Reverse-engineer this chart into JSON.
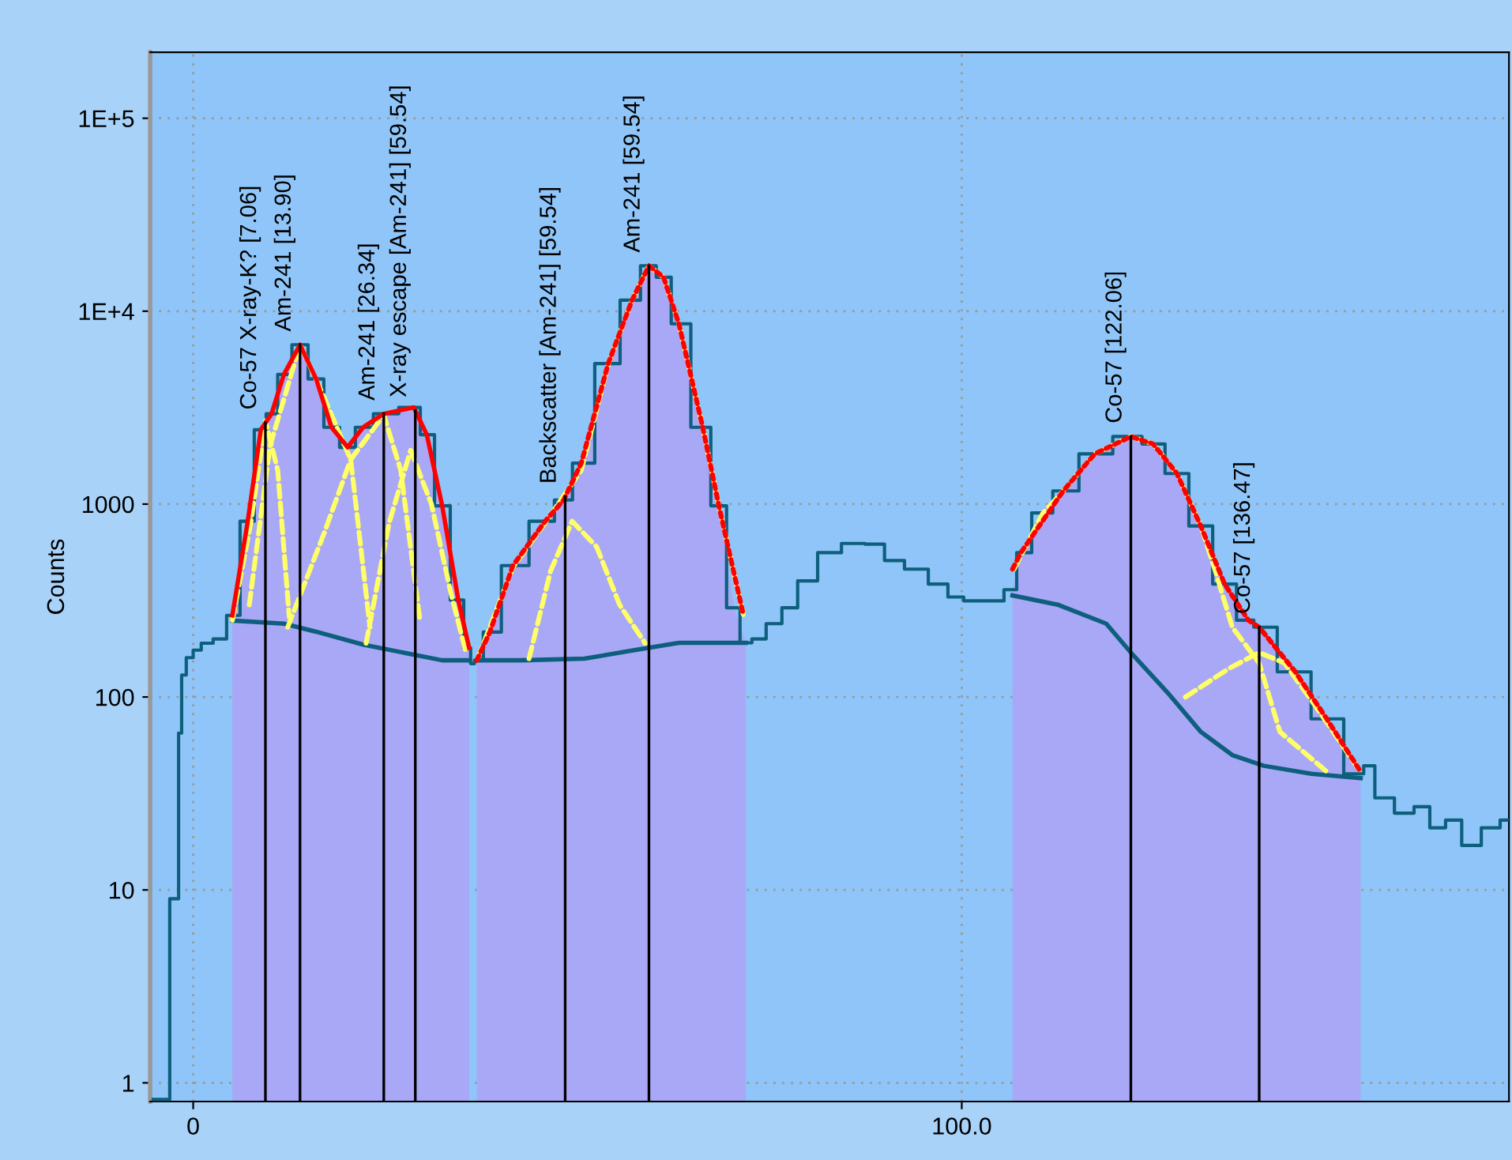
{
  "chart_data": {
    "type": "line",
    "ylabel": "Counts",
    "log": "y",
    "grid": true,
    "xlim": [
      -5.6,
      171.2
    ],
    "xticks": [
      0,
      {
        "value": 100,
        "label": "100.0"
      }
    ],
    "ylim": [
      0.8,
      220000
    ],
    "yticks": [
      1,
      10,
      100,
      1000,
      {
        "value": 10000,
        "label": "1E+4"
      },
      {
        "value": 100000,
        "label": "1E+5"
      }
    ],
    "ref_lines": [
      {
        "axis": "x",
        "value": 9.4,
        "label": "Co-57 X-ray-K? [7.06]",
        "color": "#000000"
      },
      {
        "axis": "x",
        "value": 13.9,
        "label": "Am-241 [13.90]",
        "color": "#000000"
      },
      {
        "axis": "x",
        "value": 24.8,
        "label": "Am-241 [26.34]",
        "color": "#000000"
      },
      {
        "axis": "x",
        "value": 28.9,
        "label": "X-ray escape [Am-241] [59.54]",
        "color": "#000000"
      },
      {
        "axis": "x",
        "value": 48.4,
        "label": "Backscatter [Am-241] [59.54]",
        "color": "#000000"
      },
      {
        "axis": "x",
        "value": 59.3,
        "label": "Am-241 [59.54]",
        "color": "#000000"
      },
      {
        "axis": "x",
        "value": 122.0,
        "label": "Co-57 [122.06]",
        "color": "#000000"
      },
      {
        "axis": "x",
        "value": 138.7,
        "label": "Co-57 [136.47]",
        "color": "#000000"
      }
    ],
    "series": [
      {
        "type": "area",
        "color": "#a9a8f7",
        "x": [
          5.1,
          7.1,
          8.8,
          10.2,
          11.8,
          13.9,
          16.0,
          18.0,
          20.1,
          22.1,
          24.8,
          28.7,
          30.4,
          32.4,
          34.5,
          35.9
        ],
        "values": [
          265,
          815,
          2430,
          2940,
          4700,
          6700,
          4450,
          2500,
          1970,
          2500,
          2940,
          3170,
          2290,
          980,
          318,
          180
        ]
      },
      {
        "type": "area",
        "color": "#a9a8f7",
        "x": [
          36.9,
          38.6,
          41.6,
          45.8,
          48.2,
          50.5,
          54.0,
          57.1,
          59.3,
          61.2,
          63.2,
          66.3,
          68.4,
          70.4,
          71.9
        ],
        "values": [
          155,
          217,
          480,
          815,
          1050,
          1630,
          5350,
          11400,
          17200,
          15000,
          8600,
          2500,
          980,
          290,
          191
        ]
      },
      {
        "type": "area",
        "color": "#a9a8f7",
        "x": [
          106.6,
          107.7,
          110.5,
          113.2,
          117.3,
          122.0,
          124.9,
          128.0,
          131.1,
          134.2,
          137.3,
          138.7,
          143.4,
          147.5,
          151.9
        ],
        "values": [
          360,
          560,
          900,
          1170,
          1820,
          2240,
          2050,
          1440,
          770,
          385,
          250,
          230,
          135,
          77,
          40
        ]
      },
      {
        "type": "step",
        "color": "#0e5f7e",
        "x": [
          -5.2,
          -3.2,
          -2.9,
          -2.1,
          -1.7,
          -1.3,
          -0.5,
          0.5,
          1.6,
          3.6,
          5.1,
          7.1,
          8.8,
          10.2,
          11.8,
          13.9,
          16.0,
          18.0,
          20.1,
          22.1,
          24.8,
          28.7,
          30.4,
          32.4,
          34.5,
          35.9,
          36.3,
          36.9,
          38.6,
          41.6,
          45.8,
          48.2,
          50.5,
          54.0,
          57.1,
          59.3,
          61.2,
          63.2,
          66.3,
          68.4,
          70.4,
          71.9,
          73.5,
          75.6,
          77.6,
          79.7,
          82.8,
          85.9,
          88.9,
          91.0,
          94.1,
          97.2,
          99.2,
          101.3,
          104.4,
          106.6,
          107.7,
          110.5,
          113.2,
          117.3,
          122.0,
          124.9,
          128.0,
          131.1,
          134.2,
          137.3,
          138.7,
          143.4,
          147.5,
          151.9,
          152.7,
          154.8,
          157.8,
          159.9,
          161.9,
          164.0,
          166.1,
          169.1,
          171.0
        ],
        "values": [
          0.82,
          0.82,
          9,
          9,
          65,
          130,
          160,
          175,
          190,
          200,
          265,
          815,
          2430,
          2940,
          4700,
          6700,
          4450,
          2500,
          1970,
          2500,
          2940,
          3170,
          2290,
          980,
          318,
          180,
          149,
          155,
          217,
          480,
          815,
          1050,
          1630,
          5350,
          11400,
          17200,
          15000,
          8600,
          2500,
          980,
          290,
          191,
          200,
          240,
          290,
          400,
          560,
          625,
          620,
          510,
          460,
          385,
          330,
          315,
          315,
          360,
          560,
          900,
          1170,
          1820,
          2240,
          2050,
          1440,
          770,
          385,
          250,
          230,
          135,
          77,
          40,
          44,
          30,
          25,
          27,
          21,
          23,
          17,
          21,
          23
        ]
      },
      {
        "color": "#0e5f7e",
        "x": [
          5.1,
          11.8,
          16.0,
          22.1,
          28.3,
          32.4,
          35.9
        ],
        "values": [
          249,
          240,
          218,
          187,
          167,
          155,
          155
        ]
      },
      {
        "color": "#0e5f7e",
        "x": [
          36.9,
          42.7,
          50.9,
          57.1,
          63.2,
          71.9
        ],
        "values": [
          155,
          155,
          158,
          174,
          191,
          191
        ]
      },
      {
        "color": "#0e5f7e",
        "x": [
          106.6,
          112.6,
          118.8,
          122.0,
          127.0,
          131.1,
          135.2,
          139.3,
          145.5,
          151.9
        ],
        "values": [
          336,
          300,
          240,
          170,
          103,
          66,
          50,
          44,
          40,
          38
        ]
      },
      {
        "color": "#ffff66",
        "line_style": "dashed",
        "x": [
          5.1,
          7.5,
          9.4,
          11.0,
          12.5
        ],
        "values": [
          250,
          800,
          2700,
          1500,
          260
        ]
      },
      {
        "color": "#ffff66",
        "line_style": "dashed",
        "x": [
          7.3,
          10.0,
          13.9,
          16.5,
          20.5,
          23.0
        ],
        "values": [
          300,
          2000,
          6700,
          4000,
          1700,
          230
        ]
      },
      {
        "color": "#ffff66",
        "line_style": "dashed",
        "x": [
          12.3,
          17.0,
          20.5,
          24.8,
          27.0,
          29.5
        ],
        "values": [
          230,
          700,
          1700,
          2900,
          1500,
          250
        ]
      },
      {
        "color": "#ffff66",
        "line_style": "dashed",
        "x": [
          22.5,
          25.5,
          28.3,
          31.0,
          33.5,
          35.5
        ],
        "values": [
          190,
          800,
          1900,
          1000,
          350,
          170
        ]
      },
      {
        "color": "#ffff66",
        "line_style": "dashed",
        "x": [
          43.7,
          46.5,
          49.3,
          52.5,
          55.5,
          58.8
        ],
        "values": [
          158,
          450,
          815,
          600,
          300,
          190
        ]
      },
      {
        "color": "#ffff66",
        "line_style": "dashed",
        "x": [
          37.0,
          41.6,
          45.8,
          50.5,
          54.0,
          57.1,
          59.3,
          61.2,
          63.2,
          66.3,
          68.4,
          71.6
        ],
        "values": [
          158,
          470,
          800,
          1500,
          5300,
          11400,
          17200,
          15000,
          8600,
          2500,
          980,
          265
        ]
      },
      {
        "color": "#ffff66",
        "line_style": "dashed",
        "x": [
          106.8,
          110.5,
          113.2,
          117.3,
          122.0,
          124.9,
          128.0,
          131.1,
          133.0,
          135.2,
          138.7,
          141.4,
          147.5
        ],
        "values": [
          460,
          890,
          1170,
          1820,
          2240,
          2050,
          1440,
          770,
          450,
          230,
          150,
          66,
          41
        ]
      },
      {
        "color": "#ffff66",
        "line_style": "dashed",
        "x": [
          129.1,
          134.7,
          138.7,
          142.0,
          146.0,
          151.7
        ],
        "values": [
          100,
          140,
          170,
          150,
          90,
          42
        ]
      },
      {
        "color": "#ff0000",
        "x": [
          5.1,
          7.1,
          8.8,
          10.2,
          11.8,
          13.9,
          16.0,
          18.0,
          20.1,
          22.1,
          24.8,
          28.7,
          30.4,
          32.4,
          34.5,
          35.9
        ],
        "values": [
          265,
          815,
          2430,
          2940,
          4700,
          6700,
          4450,
          2500,
          1970,
          2500,
          2940,
          3170,
          2290,
          980,
          318,
          180
        ]
      },
      {
        "color": "#ff0000",
        "line_style": "dotted",
        "x": [
          36.9,
          38.6,
          41.6,
          45.8,
          48.2,
          50.5,
          54.0,
          57.1,
          59.3,
          61.2,
          63.2,
          66.3,
          68.4,
          71.6
        ],
        "values": [
          155,
          217,
          480,
          815,
          1050,
          1630,
          5350,
          11400,
          17200,
          15000,
          8600,
          2500,
          980,
          265
        ]
      },
      {
        "color": "#ff0000",
        "line_style": "dotted",
        "x": [
          106.6,
          107.7,
          113.2,
          117.3,
          122.0,
          124.9,
          128.0,
          131.1,
          134.2,
          137.3,
          138.7,
          143.4,
          147.5,
          151.9
        ],
        "values": [
          460,
          560,
          1170,
          1820,
          2240,
          2050,
          1440,
          770,
          385,
          250,
          230,
          135,
          77,
          41
        ]
      }
    ]
  }
}
